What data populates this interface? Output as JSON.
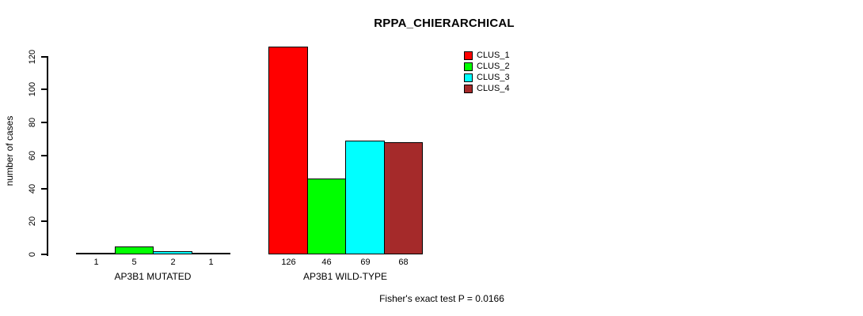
{
  "title": "RPPA_CHIERARCHICAL",
  "footer": "Fisher's exact test P = 0.0166",
  "chart_data": {
    "type": "bar",
    "subtype": "grouped",
    "title": "RPPA_CHIERARCHICAL",
    "xlabel": "",
    "ylabel": "number of cases",
    "ylim": [
      0,
      120
    ],
    "yticks": [
      0,
      20,
      40,
      60,
      80,
      100,
      120
    ],
    "grid": false,
    "legend_position": "top-right",
    "bar_value_labels_shown": true,
    "categories": [
      "AP3B1 MUTATED",
      "AP3B1 WILD-TYPE"
    ],
    "series": [
      {
        "name": "CLUS_1",
        "color": "#FF0000",
        "values": [
          1,
          126
        ]
      },
      {
        "name": "CLUS_2",
        "color": "#00FF00",
        "values": [
          5,
          46
        ]
      },
      {
        "name": "CLUS_3",
        "color": "#00FFFF",
        "values": [
          2,
          69
        ]
      },
      {
        "name": "CLUS_4",
        "color": "#A52A2A",
        "values": [
          1,
          68
        ]
      }
    ],
    "annotation": "Fisher's exact test P = 0.0166"
  }
}
